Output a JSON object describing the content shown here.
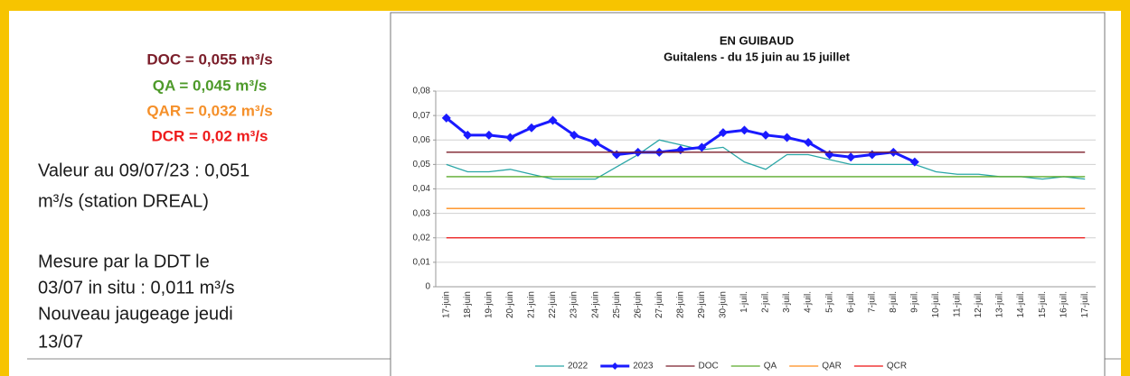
{
  "thresholds": [
    {
      "text": "DOC = 0,055 m³/s",
      "color": "#7b1e2a"
    },
    {
      "text": "QA = 0,045 m³/s",
      "color": "#4e9a2a"
    },
    {
      "text": "QAR = 0,032 m³/s",
      "color": "#f5902a"
    },
    {
      "text": "DCR = 0,02 m³/s",
      "color": "#ee1c1c"
    }
  ],
  "notes": [
    [
      "Valeur au 09/07/23 : 0,051",
      "m³/s (station DREAL)"
    ],
    [
      "Mesure par la DDT le",
      "03/07 in situ : 0,011 m³/s",
      "Nouveau jaugeage jeudi",
      "13/07"
    ]
  ],
  "chart_data": {
    "type": "line",
    "title": "EN GUIBAUD",
    "subtitle": "Guitalens - du 15 juin au 15 juillet",
    "categories": [
      "17-juin",
      "18-juin",
      "19-juin",
      "20-juin",
      "21-juin",
      "22-juin",
      "23-juin",
      "24-juin",
      "25-juin",
      "26-juin",
      "27-juin",
      "28-juin",
      "29-juin",
      "30-juin",
      "1-juil.",
      "2-juil.",
      "3-juil.",
      "4-juil.",
      "5-juil.",
      "6-juil.",
      "7-juil.",
      "8-juil.",
      "9-juil.",
      "10-juil.",
      "11-juil.",
      "12-juil.",
      "13-juil.",
      "14-juil.",
      "15-juil.",
      "16-juil.",
      "17-juil."
    ],
    "ylim": [
      0,
      0.08
    ],
    "yticks": [
      0,
      {
        "value": 0.01,
        "label": "0,01"
      },
      {
        "value": 0.02,
        "label": "0,02"
      },
      {
        "value": 0.03,
        "label": "0,03"
      },
      {
        "value": 0.04,
        "label": "0,04"
      },
      {
        "value": 0.05,
        "label": "0,05"
      },
      {
        "value": 0.06,
        "label": "0,06"
      },
      {
        "value": 0.07,
        "label": "0,07"
      },
      {
        "value": 0.08,
        "label": "0,08"
      }
    ],
    "grid": true,
    "legend": "bottom",
    "series": [
      {
        "name": "2022",
        "color": "#2aa6a6",
        "values": [
          0.05,
          0.047,
          0.047,
          0.048,
          0.046,
          0.044,
          0.044,
          0.044,
          0.049,
          0.054,
          0.06,
          0.058,
          0.056,
          0.057,
          0.051,
          0.048,
          0.054,
          0.054,
          0.052,
          0.05,
          0.05,
          0.05,
          0.05,
          0.047,
          0.046,
          0.046,
          0.045,
          0.045,
          0.044,
          0.045,
          0.044
        ]
      },
      {
        "name": "2023",
        "color": "#1a1aff",
        "markers": true,
        "values": [
          0.069,
          0.062,
          0.062,
          0.061,
          0.065,
          0.068,
          0.062,
          0.059,
          0.054,
          0.055,
          0.055,
          0.056,
          0.057,
          0.063,
          0.064,
          0.062,
          0.061,
          0.059,
          0.054,
          0.053,
          0.054,
          0.055,
          0.051,
          null,
          null,
          null,
          null,
          null,
          null,
          null,
          null
        ]
      },
      {
        "name": "DOC",
        "color": "#7b1e2a",
        "values": [
          0.055,
          0.055,
          0.055,
          0.055,
          0.055,
          0.055,
          0.055,
          0.055,
          0.055,
          0.055,
          0.055,
          0.055,
          0.055,
          0.055,
          0.055,
          0.055,
          0.055,
          0.055,
          0.055,
          0.055,
          0.055,
          0.055,
          0.055,
          0.055,
          0.055,
          0.055,
          0.055,
          0.055,
          0.055,
          0.055,
          0.055
        ]
      },
      {
        "name": "QA",
        "color": "#5aaa2a",
        "values": [
          0.045,
          0.045,
          0.045,
          0.045,
          0.045,
          0.045,
          0.045,
          0.045,
          0.045,
          0.045,
          0.045,
          0.045,
          0.045,
          0.045,
          0.045,
          0.045,
          0.045,
          0.045,
          0.045,
          0.045,
          0.045,
          0.045,
          0.045,
          0.045,
          0.045,
          0.045,
          0.045,
          0.045,
          0.045,
          0.045,
          0.045
        ]
      },
      {
        "name": "QAR",
        "color": "#ff8c1a",
        "values": [
          0.032,
          0.032,
          0.032,
          0.032,
          0.032,
          0.032,
          0.032,
          0.032,
          0.032,
          0.032,
          0.032,
          0.032,
          0.032,
          0.032,
          0.032,
          0.032,
          0.032,
          0.032,
          0.032,
          0.032,
          0.032,
          0.032,
          0.032,
          0.032,
          0.032,
          0.032,
          0.032,
          0.032,
          0.032,
          0.032,
          0.032
        ]
      },
      {
        "name": "QCR",
        "color": "#ee1111",
        "values": [
          0.02,
          0.02,
          0.02,
          0.02,
          0.02,
          0.02,
          0.02,
          0.02,
          0.02,
          0.02,
          0.02,
          0.02,
          0.02,
          0.02,
          0.02,
          0.02,
          0.02,
          0.02,
          0.02,
          0.02,
          0.02,
          0.02,
          0.02,
          0.02,
          0.02,
          0.02,
          0.02,
          0.02,
          0.02,
          0.02,
          0.02
        ]
      }
    ]
  }
}
